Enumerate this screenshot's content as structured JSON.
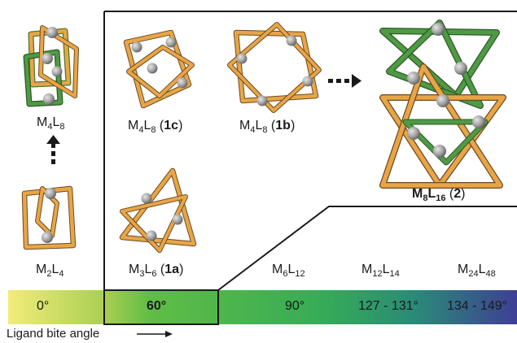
{
  "labels": {
    "m4l8_left": {
      "a": "M",
      "b": "4",
      "c": "L",
      "d": "8"
    },
    "m2l4": {
      "a": "M",
      "b": "2",
      "c": "L",
      "d": "4"
    },
    "m4l8_1c": {
      "a": "M",
      "b": "4",
      "c": "L",
      "d": "8",
      "open": " (",
      "num": "1c",
      "close": ")"
    },
    "m4l8_1b": {
      "a": "M",
      "b": "4",
      "c": "L",
      "d": "8",
      "open": " (",
      "num": "1b",
      "close": ")"
    },
    "m3l6_1a": {
      "a": "M",
      "b": "3",
      "c": "L",
      "d": "6",
      "open": " (",
      "num": "1a",
      "close": ")"
    },
    "m8l16_2": {
      "a": "M",
      "b": "8",
      "c": "L",
      "d": "16",
      "open": " (",
      "num": "2",
      "close": ")"
    },
    "m6l12": {
      "a": "M",
      "b": "6",
      "c": "L",
      "d": "12"
    },
    "m12l14": {
      "a": "M",
      "b": "12",
      "c": "L",
      "d": "14"
    },
    "m24l48": {
      "a": "M",
      "b": "24",
      "c": "L",
      "d": "48"
    }
  },
  "angles": [
    "0°",
    "60°",
    "90°",
    "127 - 131°",
    "134 - 149°"
  ],
  "axis_label": "Ligand bite angle",
  "colors": {
    "gradient_start": "#f3ec7a",
    "gradient_green": "#3fb54c",
    "gradient_end": "#3e3f95",
    "ligand_orange": "#e8a547",
    "ligand_green": "#3f8a3c",
    "metal_grey": "#9a9a9a"
  }
}
